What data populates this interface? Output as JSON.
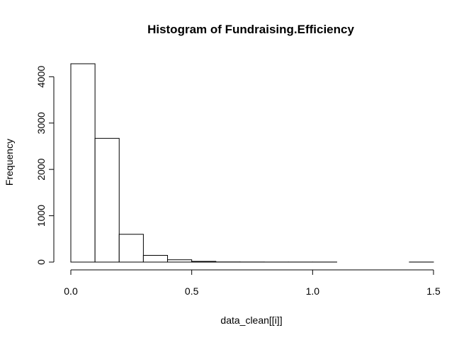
{
  "chart_data": {
    "type": "bar",
    "title": "Histogram of Fundraising.Efficiency",
    "xlabel": "data_clean[[i]]",
    "ylabel": "Frequency",
    "bin_width": 0.1,
    "bins": [
      {
        "start": 0.0,
        "end": 0.1,
        "count": 4280
      },
      {
        "start": 0.1,
        "end": 0.2,
        "count": 2670
      },
      {
        "start": 0.2,
        "end": 0.3,
        "count": 600
      },
      {
        "start": 0.3,
        "end": 0.4,
        "count": 145
      },
      {
        "start": 0.4,
        "end": 0.5,
        "count": 50
      },
      {
        "start": 0.5,
        "end": 0.6,
        "count": 15
      },
      {
        "start": 0.6,
        "end": 0.7,
        "count": 3
      },
      {
        "start": 0.7,
        "end": 0.8,
        "count": 2
      },
      {
        "start": 0.8,
        "end": 0.9,
        "count": 1
      },
      {
        "start": 0.9,
        "end": 1.0,
        "count": 1
      },
      {
        "start": 1.0,
        "end": 1.1,
        "count": 1
      },
      {
        "start": 1.1,
        "end": 1.2,
        "count": 0
      },
      {
        "start": 1.2,
        "end": 1.3,
        "count": 0
      },
      {
        "start": 1.3,
        "end": 1.4,
        "count": 0
      },
      {
        "start": 1.4,
        "end": 1.5,
        "count": 1
      }
    ],
    "x_ticks": [
      0.0,
      0.5,
      1.0,
      1.5
    ],
    "x_tick_labels": [
      "0.0",
      "0.5",
      "1.0",
      "1.5"
    ],
    "y_ticks": [
      0,
      1000,
      2000,
      3000,
      4000
    ],
    "y_tick_labels": [
      "0",
      "1000",
      "2000",
      "3000",
      "4000"
    ],
    "xlim": [
      0.0,
      1.5
    ],
    "ylim": [
      0,
      4280
    ],
    "grid": false,
    "colors": {
      "bar_fill": "#ffffff",
      "bar_stroke": "#000000",
      "axis": "#000000"
    }
  }
}
